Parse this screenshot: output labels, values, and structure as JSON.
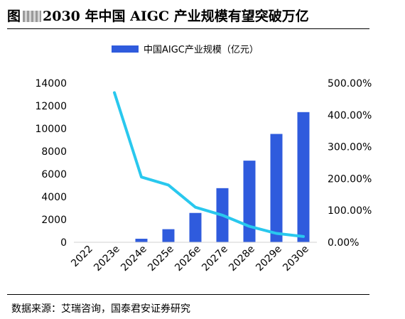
{
  "figure": {
    "label": "图",
    "title": "2030 年中国 AIGC 产业规模有望突破万亿",
    "source": "数据来源：艾瑞咨询，国泰君安证券研究"
  },
  "chart_data": {
    "type": "bar",
    "categories": [
      "2022",
      "2023e",
      "2024e",
      "2025e",
      "2026e",
      "2027e",
      "2028e",
      "2029e",
      "2030e"
    ],
    "series": [
      {
        "name": "中国AIGC产业规模（亿元）",
        "type": "bar",
        "axis": "left",
        "values": [
          0,
          0,
          310,
          1150,
          2580,
          4760,
          7180,
          9530,
          11450
        ]
      },
      {
        "type": "line",
        "axis": "right",
        "values": [
          null,
          470,
          205,
          180,
          110,
          85,
          50,
          28,
          18
        ]
      }
    ],
    "left_axis": {
      "min": 0,
      "max": 14000,
      "ticks": [
        "0",
        "2000",
        "4000",
        "6000",
        "8000",
        "10000",
        "12000",
        "14000"
      ]
    },
    "right_axis": {
      "min": 0,
      "max": 500,
      "ticks": [
        "0.00%",
        "100.00%",
        "200.00%",
        "300.00%",
        "400.00%",
        "500.00%"
      ]
    },
    "legend_position": "top",
    "grid": false,
    "colors": {
      "bar": "#2f5bdd",
      "line": "#29c8ee"
    }
  }
}
